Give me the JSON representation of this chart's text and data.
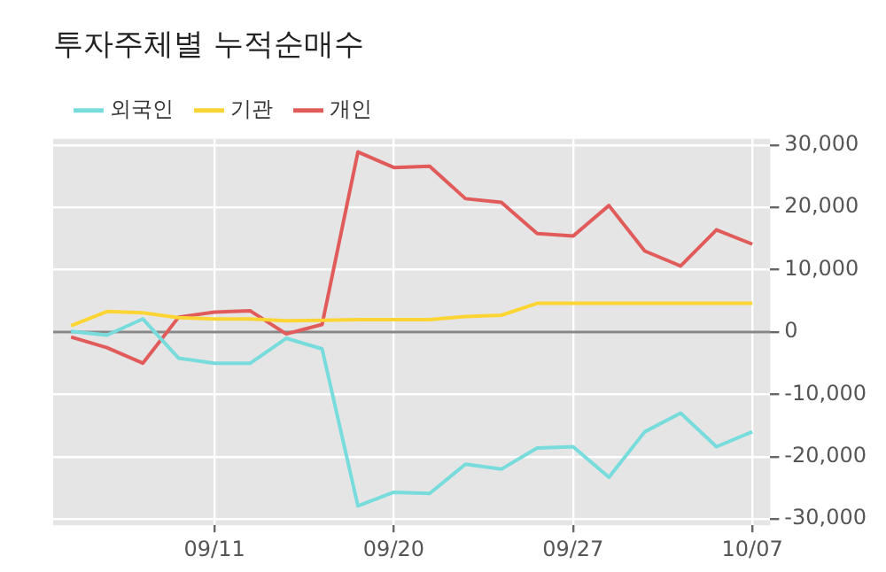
{
  "chart_data": {
    "type": "line",
    "title": "투자주체별 누적순매수",
    "categories": [
      null,
      null,
      null,
      null,
      "09/11",
      null,
      null,
      null,
      null,
      "09/20",
      null,
      null,
      null,
      null,
      "09/27",
      null,
      null,
      null,
      null,
      "10/07"
    ],
    "series": [
      {
        "name": "외국인",
        "color": "#78dcdc",
        "values": [
          100,
          -500,
          2100,
          -4200,
          -5000,
          -5000,
          -1000,
          -2700,
          -27900,
          -25700,
          -25900,
          -21200,
          -22000,
          -18600,
          -18400,
          -23300,
          -16000,
          -13000,
          -18400,
          -16000
        ]
      },
      {
        "name": "기관",
        "color": "#fcd535",
        "values": [
          1000,
          3300,
          3100,
          2300,
          2100,
          2100,
          1800,
          1900,
          2000,
          2000,
          2000,
          2500,
          2700,
          4600,
          4600,
          4600,
          4600,
          4600,
          4600,
          4600
        ]
      },
      {
        "name": "개인",
        "color": "#e15b5b",
        "values": [
          -800,
          -2500,
          -5000,
          2400,
          3200,
          3400,
          -300,
          1200,
          28900,
          26400,
          26600,
          21400,
          20800,
          15800,
          15400,
          20300,
          13000,
          10600,
          16400,
          14100
        ]
      }
    ],
    "ylim": [
      -31000,
      31000
    ],
    "yticks": [
      {
        "value": -30000,
        "label": "-30,000"
      },
      {
        "value": -20000,
        "label": "-20,000"
      },
      {
        "value": -10000,
        "label": "-10,000"
      },
      0,
      {
        "value": 10000,
        "label": "10,000"
      },
      {
        "value": 20000,
        "label": "20,000"
      },
      {
        "value": 30000,
        "label": "30,000"
      }
    ],
    "ref_lines": [
      {
        "axis": "y",
        "value": 0,
        "color": "#888888"
      }
    ],
    "grid": true,
    "legend": "top left",
    "marker": "none",
    "line_style": "solid"
  }
}
